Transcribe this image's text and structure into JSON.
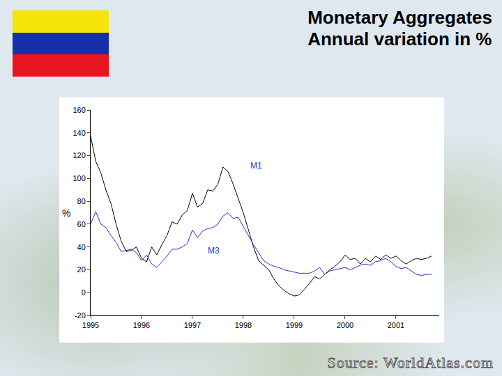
{
  "chart_data": {
    "type": "line",
    "title": "Monetary Aggregates",
    "subtitle": "Annual variation in %",
    "y_label": "%",
    "source": "Source: WorldAtlas.com",
    "x": [
      1995.0,
      1995.1,
      1995.2,
      1995.3,
      1995.4,
      1995.5,
      1995.6,
      1995.7,
      1995.8,
      1995.9,
      1996.0,
      1996.1,
      1996.2,
      1996.3,
      1996.4,
      1996.5,
      1996.6,
      1996.7,
      1996.8,
      1996.9,
      1997.0,
      1997.1,
      1997.2,
      1997.3,
      1997.4,
      1997.5,
      1997.6,
      1997.7,
      1997.8,
      1997.9,
      1998.0,
      1998.1,
      1998.2,
      1998.3,
      1998.4,
      1998.5,
      1998.6,
      1998.7,
      1998.8,
      1998.9,
      1999.0,
      1999.1,
      1999.2,
      1999.3,
      1999.4,
      1999.5,
      1999.6,
      1999.7,
      1999.8,
      1999.9,
      2000.0,
      2000.1,
      2000.2,
      2000.3,
      2000.4,
      2000.5,
      2000.6,
      2000.7,
      2000.8,
      2000.9,
      2001.0,
      2001.1,
      2001.2,
      2001.3,
      2001.4,
      2001.5,
      2001.6,
      2001.7
    ],
    "series": [
      {
        "name": "M1",
        "color": "#000000",
        "values": [
          137,
          115,
          105,
          90,
          78,
          60,
          45,
          36,
          37,
          40,
          30,
          27,
          40,
          33,
          42,
          50,
          62,
          60,
          68,
          72,
          87,
          75,
          78,
          90,
          89,
          95,
          110,
          106,
          95,
          82,
          70,
          55,
          40,
          28,
          24,
          20,
          12,
          6,
          2,
          -1,
          -3,
          -2,
          3,
          8,
          14,
          12,
          16,
          20,
          23,
          27,
          33,
          29,
          30,
          25,
          30,
          27,
          32,
          29,
          33,
          30,
          32,
          28,
          25,
          28,
          30,
          29,
          30,
          32
        ]
      },
      {
        "name": "M3",
        "color": "#2233cc",
        "values": [
          60,
          71,
          60,
          57,
          50,
          44,
          36,
          37,
          38,
          35,
          28,
          33,
          25,
          22,
          27,
          32,
          38,
          38,
          40,
          43,
          55,
          48,
          54,
          56,
          57,
          60,
          67,
          70,
          65,
          66,
          58,
          50,
          42,
          35,
          28,
          25,
          23,
          22,
          20,
          19,
          18,
          17,
          17,
          17,
          19,
          22,
          16,
          19,
          20,
          21,
          22,
          20,
          22,
          24,
          25,
          24,
          27,
          28,
          30,
          27,
          23,
          21,
          22,
          19,
          16,
          15,
          16,
          16
        ]
      }
    ],
    "annotations": [
      {
        "text": "M1",
        "x": 1998.25,
        "y": 111,
        "color": "#2233cc"
      },
      {
        "text": "M3",
        "x": 1997.42,
        "y": 37,
        "color": "#2233cc"
      }
    ],
    "xlim": [
      1995,
      2001.85
    ],
    "xticks": [
      1995,
      1996,
      1997,
      1998,
      1999,
      2000,
      2001
    ],
    "ylim": [
      -20,
      160
    ],
    "yticks": [
      -20,
      0,
      20,
      40,
      60,
      80,
      100,
      120,
      140,
      160
    ],
    "grid": false
  }
}
